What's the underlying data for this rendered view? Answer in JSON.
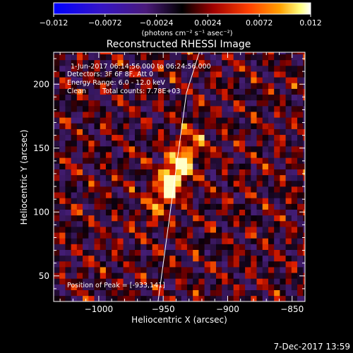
{
  "chart_data": {
    "type": "heatmap",
    "title": "Reconstructed RHESSI Image",
    "xlabel": "Heliocentric X (arcsec)",
    "ylabel": "Heliocentric Y (arcsec)",
    "xlim": [
      -1035,
      -840
    ],
    "ylim": [
      30,
      225
    ],
    "x_ticks": [
      -1000,
      -950,
      -900,
      -850
    ],
    "x_tick_labels": [
      "−1000",
      "−950",
      "−900",
      "−850"
    ],
    "y_ticks": [
      50,
      100,
      150,
      200
    ],
    "y_tick_labels": [
      "50",
      "100",
      "150",
      "200"
    ],
    "colorbar": {
      "range": [
        -0.012,
        0.012
      ],
      "ticks": [
        -0.012,
        -0.0072,
        -0.0024,
        0.0024,
        0.0072,
        0.012
      ],
      "tick_labels": [
        "−0.012",
        "−0.0072",
        "−0.0024",
        "0.0024",
        "0.0072",
        "0.012"
      ],
      "unit_label": "(photons cm⁻² s⁻¹ asec⁻²)",
      "colors": [
        "#0000ff",
        "#4b1a8c",
        "#000000",
        "#8b0000",
        "#ff3a00",
        "#ff9f00",
        "#ffff80",
        "#ffffff"
      ]
    },
    "annotations": [
      "1-Jun-2017 06:14:56.000 to 06:24:56.000",
      "Detectors: 3F 6F 8F, Att 0",
      "Energy Range: 6.0 - 12.0 keV",
      "Clean",
      "Total counts: 7.78E+03"
    ],
    "peak_label": "Position of Peak = [-933,141]",
    "peak_position": [
      -933,
      141
    ],
    "limb_line": [
      [
        -954,
        30
      ],
      [
        -932,
        193
      ],
      [
        -922,
        225
      ]
    ],
    "source": {
      "center": [
        -943,
        128
      ],
      "angle_deg": 62
    }
  },
  "footer": {
    "timestamp": "7-Dec-2017 13:59"
  }
}
